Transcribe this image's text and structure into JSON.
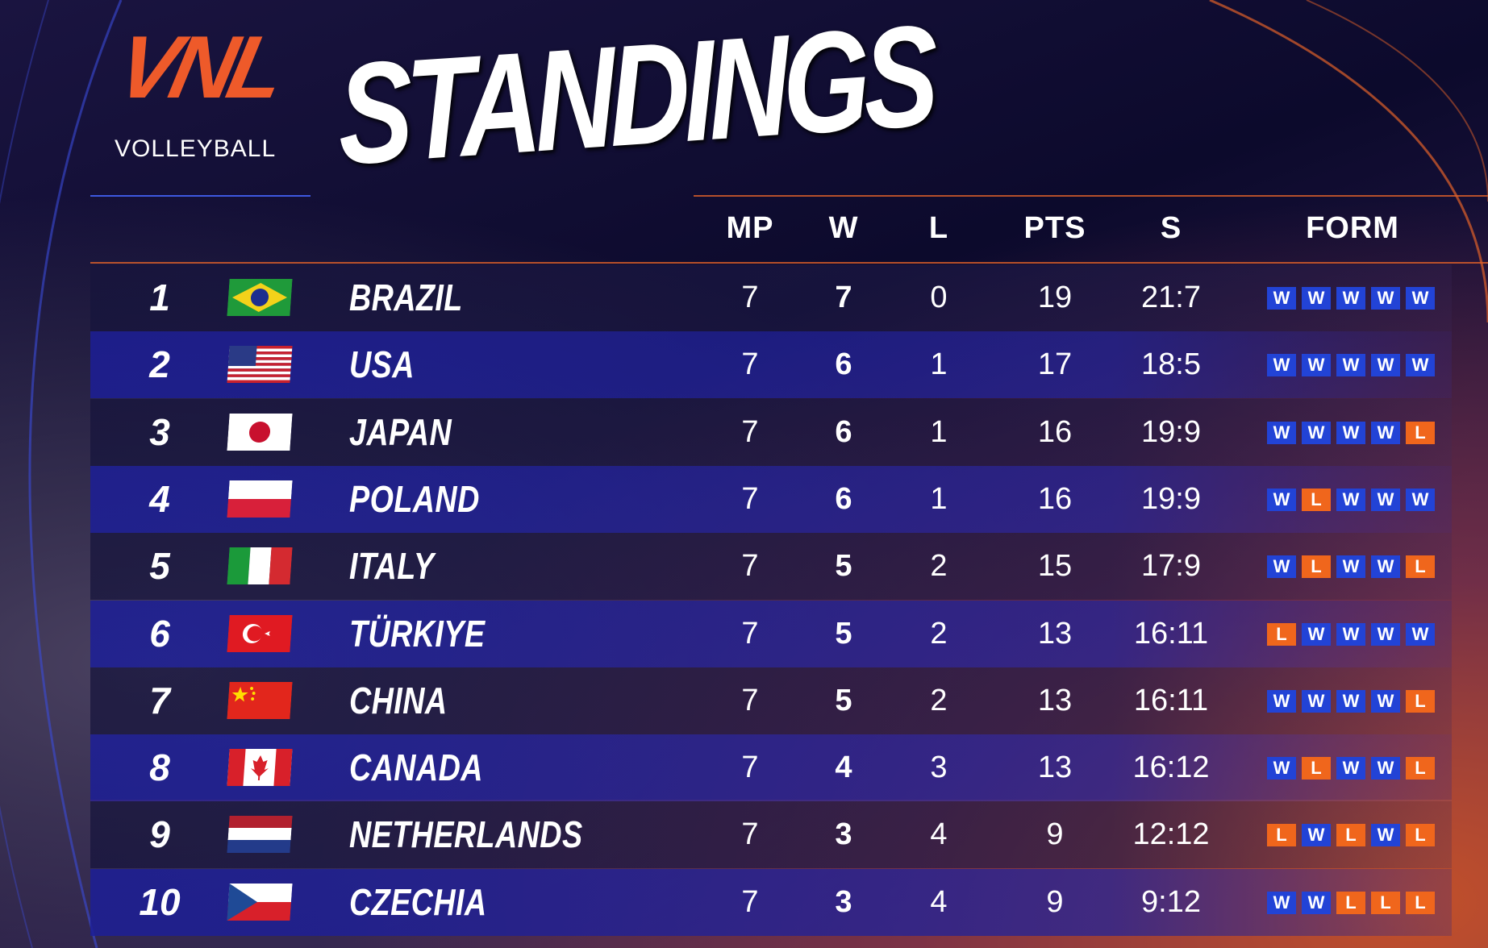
{
  "logo": {
    "mark": "VNL",
    "text": "VOLLEYBALL"
  },
  "title": "STANDINGS",
  "table": {
    "columns": [
      "MP",
      "W",
      "L",
      "PTS",
      "S",
      "FORM"
    ],
    "form_colors": {
      "W": "#2243d6",
      "L": "#f0661c"
    },
    "rows": [
      {
        "rank": 1,
        "team": "BRAZIL",
        "mp": 7,
        "w": 7,
        "l": 0,
        "pts": 19,
        "s": "21:7",
        "form": [
          "W",
          "W",
          "W",
          "W",
          "W"
        ]
      },
      {
        "rank": 2,
        "team": "USA",
        "mp": 7,
        "w": 6,
        "l": 1,
        "pts": 17,
        "s": "18:5",
        "form": [
          "W",
          "W",
          "W",
          "W",
          "W"
        ]
      },
      {
        "rank": 3,
        "team": "JAPAN",
        "mp": 7,
        "w": 6,
        "l": 1,
        "pts": 16,
        "s": "19:9",
        "form": [
          "W",
          "W",
          "W",
          "W",
          "L"
        ]
      },
      {
        "rank": 4,
        "team": "POLAND",
        "mp": 7,
        "w": 6,
        "l": 1,
        "pts": 16,
        "s": "19:9",
        "form": [
          "W",
          "L",
          "W",
          "W",
          "W"
        ]
      },
      {
        "rank": 5,
        "team": "ITALY",
        "mp": 7,
        "w": 5,
        "l": 2,
        "pts": 15,
        "s": "17:9",
        "form": [
          "W",
          "L",
          "W",
          "W",
          "L"
        ]
      },
      {
        "rank": 6,
        "team": "TÜRKIYE",
        "mp": 7,
        "w": 5,
        "l": 2,
        "pts": 13,
        "s": "16:11",
        "form": [
          "L",
          "W",
          "W",
          "W",
          "W"
        ]
      },
      {
        "rank": 7,
        "team": "CHINA",
        "mp": 7,
        "w": 5,
        "l": 2,
        "pts": 13,
        "s": "16:11",
        "form": [
          "W",
          "W",
          "W",
          "W",
          "L"
        ]
      },
      {
        "rank": 8,
        "team": "CANADA",
        "mp": 7,
        "w": 4,
        "l": 3,
        "pts": 13,
        "s": "16:12",
        "form": [
          "W",
          "L",
          "W",
          "W",
          "L"
        ]
      },
      {
        "rank": 9,
        "team": "NETHERLANDS",
        "mp": 7,
        "w": 3,
        "l": 4,
        "pts": 9,
        "s": "12:12",
        "form": [
          "L",
          "W",
          "L",
          "W",
          "L"
        ]
      },
      {
        "rank": 10,
        "team": "CZECHIA",
        "mp": 7,
        "w": 3,
        "l": 4,
        "pts": 9,
        "s": "9:12",
        "form": [
          "W",
          "W",
          "L",
          "L",
          "L"
        ]
      }
    ]
  }
}
